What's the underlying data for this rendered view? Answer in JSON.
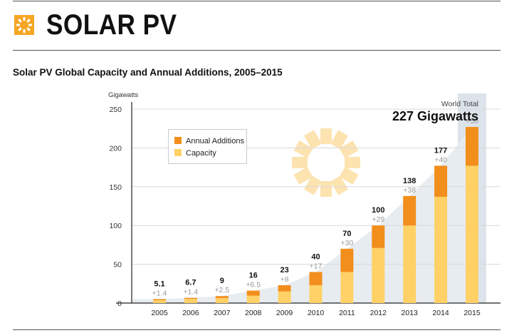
{
  "header": {
    "title": "SOLAR PV"
  },
  "colors": {
    "additions": "#F28E1C",
    "capacity": "#FFD166",
    "highlight_column": "#DDE3EA",
    "growth_area": "#E7ECF1",
    "header_logo": "#F5A623"
  },
  "chart_data": {
    "type": "bar",
    "stacked": true,
    "title": "Solar PV Global Capacity and Annual Additions, 2005–2015",
    "ylabel": "Gigawatts",
    "xlabel": "",
    "ylim": [
      0,
      250
    ],
    "yticks": [
      "0",
      "50",
      "100",
      "150",
      "200",
      "250"
    ],
    "categories": [
      "2005",
      "2006",
      "2007",
      "2008",
      "2009",
      "2010",
      "2011",
      "2012",
      "2013",
      "2014",
      "2015"
    ],
    "series": [
      {
        "name": "Capacity",
        "values": [
          3.7,
          5.3,
          6.5,
          9.5,
          15,
          23,
          40,
          71,
          100,
          137,
          177
        ]
      },
      {
        "name": "Annual Additions",
        "values": [
          1.4,
          1.4,
          2.5,
          6.5,
          8,
          17,
          30,
          29,
          38,
          40,
          50
        ]
      }
    ],
    "total_labels": [
      "5.1",
      "6.7",
      "9",
      "16",
      "23",
      "40",
      "70",
      "100",
      "138",
      "177",
      ""
    ],
    "addition_labels": [
      "+1.4",
      "+1.4",
      "+2.5",
      "+6.5",
      "+8",
      "+17",
      "+30",
      "+29",
      "+38",
      "+40",
      "+50"
    ],
    "legend": {
      "placement": "upper-left",
      "entries": [
        "Annual Additions",
        "Capacity"
      ]
    },
    "annotation": {
      "label": "World Total",
      "value": "227 Gigawatts"
    },
    "grid": true
  }
}
